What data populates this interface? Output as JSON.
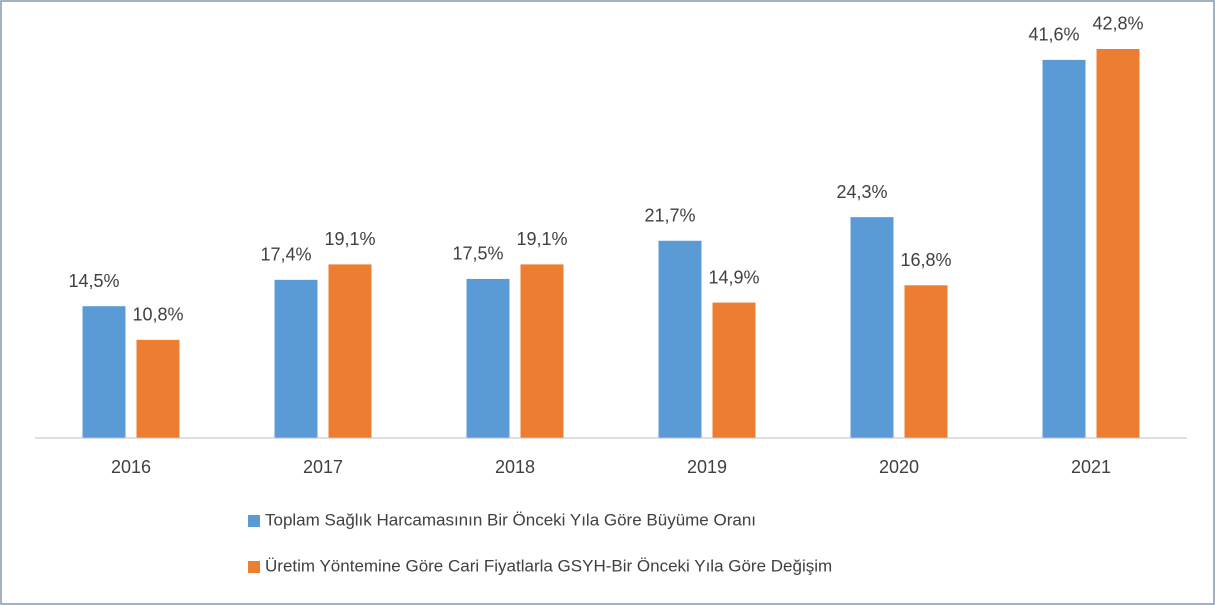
{
  "chart_data": {
    "type": "bar",
    "categories": [
      "2016",
      "2017",
      "2018",
      "2019",
      "2020",
      "2021"
    ],
    "series": [
      {
        "name": "Toplam Sağlık Harcamasının Bir Önceki Yıla Göre Büyüme Oranı",
        "color": "#5b9bd5",
        "values": [
          14.5,
          17.4,
          17.5,
          21.7,
          24.3,
          41.6
        ],
        "value_labels": [
          "14,5%",
          "17,4%",
          "17,5%",
          "21,7%",
          "24,3%",
          "41,6%"
        ]
      },
      {
        "name": "Üretim Yöntemine Göre Cari Fiyatlarla GSYH-Bir Önceki Yıla Göre Değişim",
        "color": "#ed7d31",
        "values": [
          10.8,
          19.1,
          19.1,
          14.9,
          16.8,
          42.8
        ],
        "value_labels": [
          "10,8%",
          "19,1%",
          "19,1%",
          "14,9%",
          "16,8%",
          "42,8%"
        ]
      }
    ],
    "ylim": [
      0,
      45
    ],
    "legend": "bottom"
  }
}
